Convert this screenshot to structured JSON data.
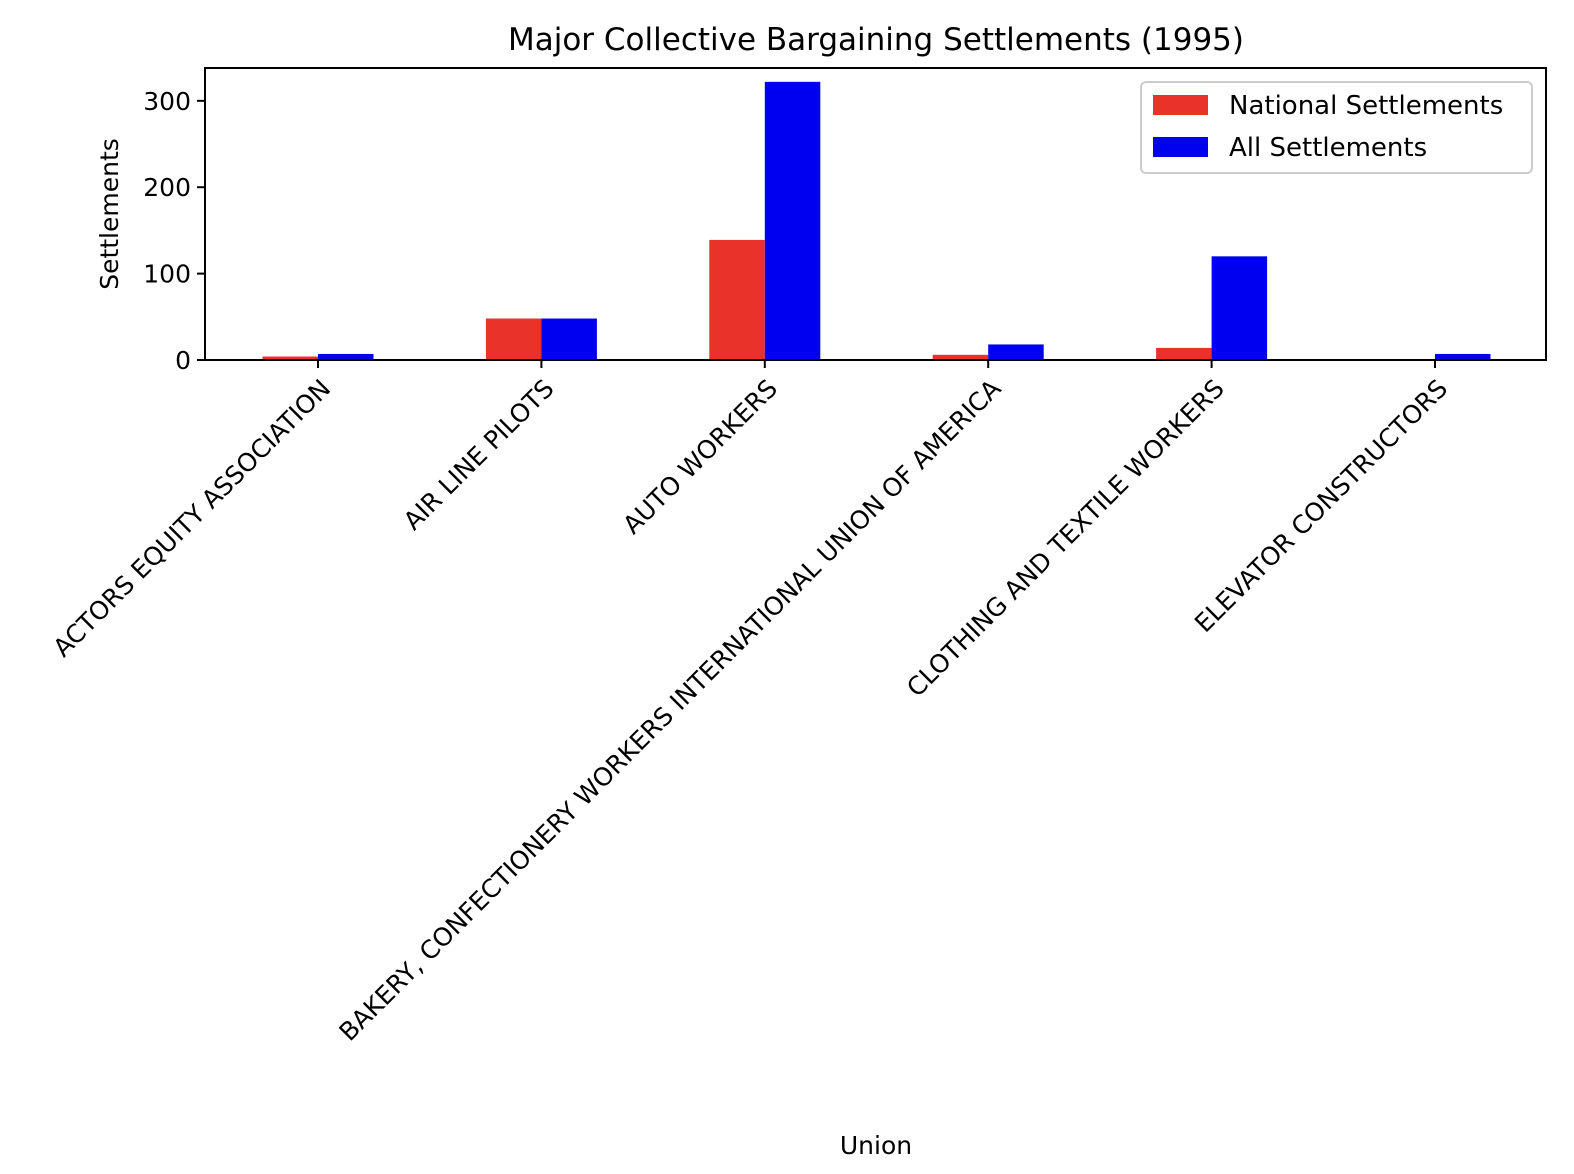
{
  "chart_data": {
    "type": "bar",
    "title": "Major Collective Bargaining Settlements (1995)",
    "xlabel": "Union",
    "ylabel": "Settlements",
    "categories": [
      "ACTORS EQUITY ASSOCIATION",
      "AIR LINE PILOTS",
      "AUTO WORKERS",
      "BAKERY, CONFECTIONERY WORKERS INTERNATIONAL UNION OF AMERICA",
      "CLOTHING AND TEXTILE WORKERS",
      "ELEVATOR CONSTRUCTORS"
    ],
    "series": [
      {
        "name": "National Settlements",
        "color": "#e8322a",
        "values": [
          4,
          48,
          139,
          6,
          14,
          0
        ]
      },
      {
        "name": "All Settlements",
        "color": "#0000f0",
        "values": [
          7,
          48,
          322,
          18,
          120,
          7
        ]
      }
    ],
    "ylim": [
      0,
      338
    ],
    "yticks": [
      0,
      100,
      200,
      300
    ],
    "legend_position": "top-right",
    "grid": false
  }
}
